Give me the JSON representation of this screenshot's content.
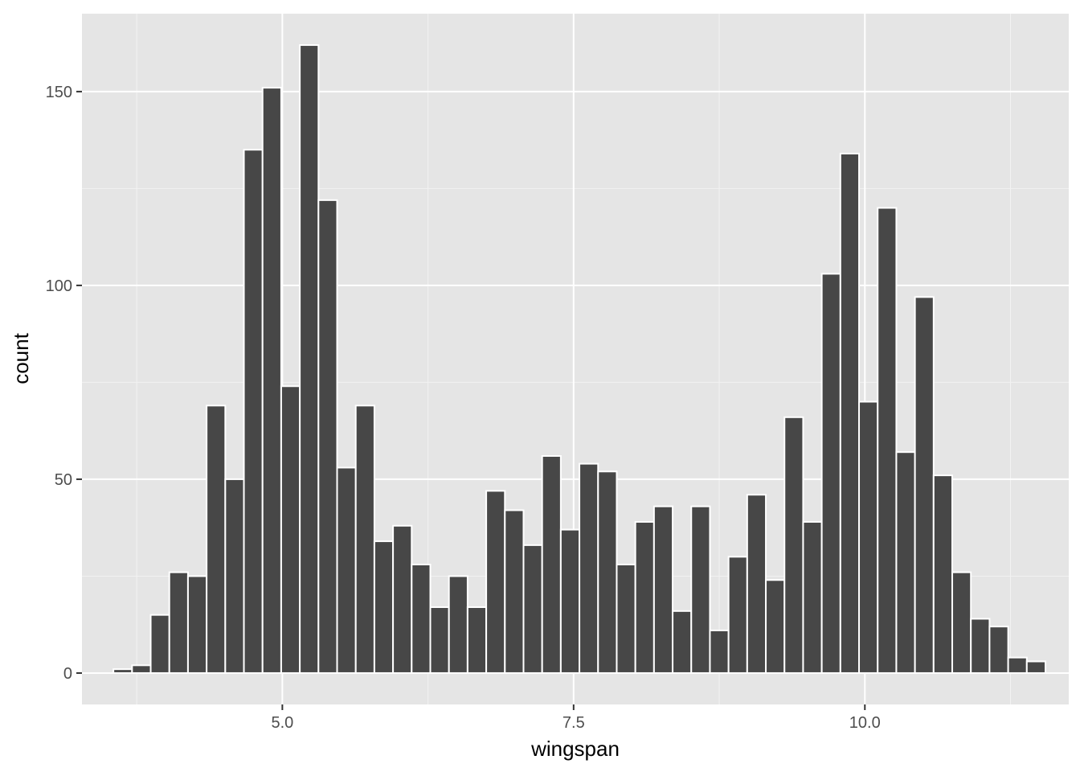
{
  "chart_data": {
    "type": "bar",
    "histogram": true,
    "xlabel": "wingspan",
    "ylabel": "count",
    "xlim": [
      3.28,
      11.75
    ],
    "ylim": [
      -8.1,
      170.1
    ],
    "x_ticks": [
      5.0,
      7.5,
      10.0
    ],
    "x_tick_labels": [
      "5.0",
      "7.5",
      "10.0"
    ],
    "y_ticks": [
      0,
      50,
      100,
      150
    ],
    "y_tick_labels": [
      "0",
      "50",
      "100",
      "150"
    ],
    "bin_width": 0.16,
    "bin_centers": [
      3.63,
      3.79,
      3.95,
      4.11,
      4.27,
      4.43,
      4.59,
      4.75,
      4.91,
      5.07,
      5.23,
      5.39,
      5.55,
      5.71,
      5.87,
      6.03,
      6.19,
      6.35,
      6.51,
      6.67,
      6.83,
      6.99,
      7.15,
      7.31,
      7.47,
      7.63,
      7.79,
      7.95,
      8.11,
      8.27,
      8.43,
      8.59,
      8.75,
      8.91,
      9.07,
      9.23,
      9.39,
      9.55,
      9.71,
      9.87,
      10.03,
      10.19,
      10.35,
      10.51,
      10.67,
      10.83,
      10.99,
      11.15,
      11.31,
      11.47
    ],
    "values": [
      1,
      2,
      15,
      26,
      25,
      69,
      50,
      135,
      151,
      74,
      162,
      122,
      53,
      69,
      34,
      38,
      28,
      17,
      25,
      17,
      47,
      42,
      33,
      56,
      37,
      54,
      52,
      28,
      39,
      43,
      16,
      43,
      11,
      30,
      46,
      24,
      66,
      39,
      103,
      134,
      70,
      120,
      57,
      97,
      51,
      26,
      14,
      12,
      4,
      3
    ],
    "colors": {
      "panel_background": "#e5e5e5",
      "grid_major": "#ffffff",
      "grid_minor": "#f2f2f2",
      "bar_fill": "#474747",
      "bar_outline": "#ffffff",
      "tick_mark": "#333333"
    },
    "grid": true,
    "legend": "none"
  }
}
